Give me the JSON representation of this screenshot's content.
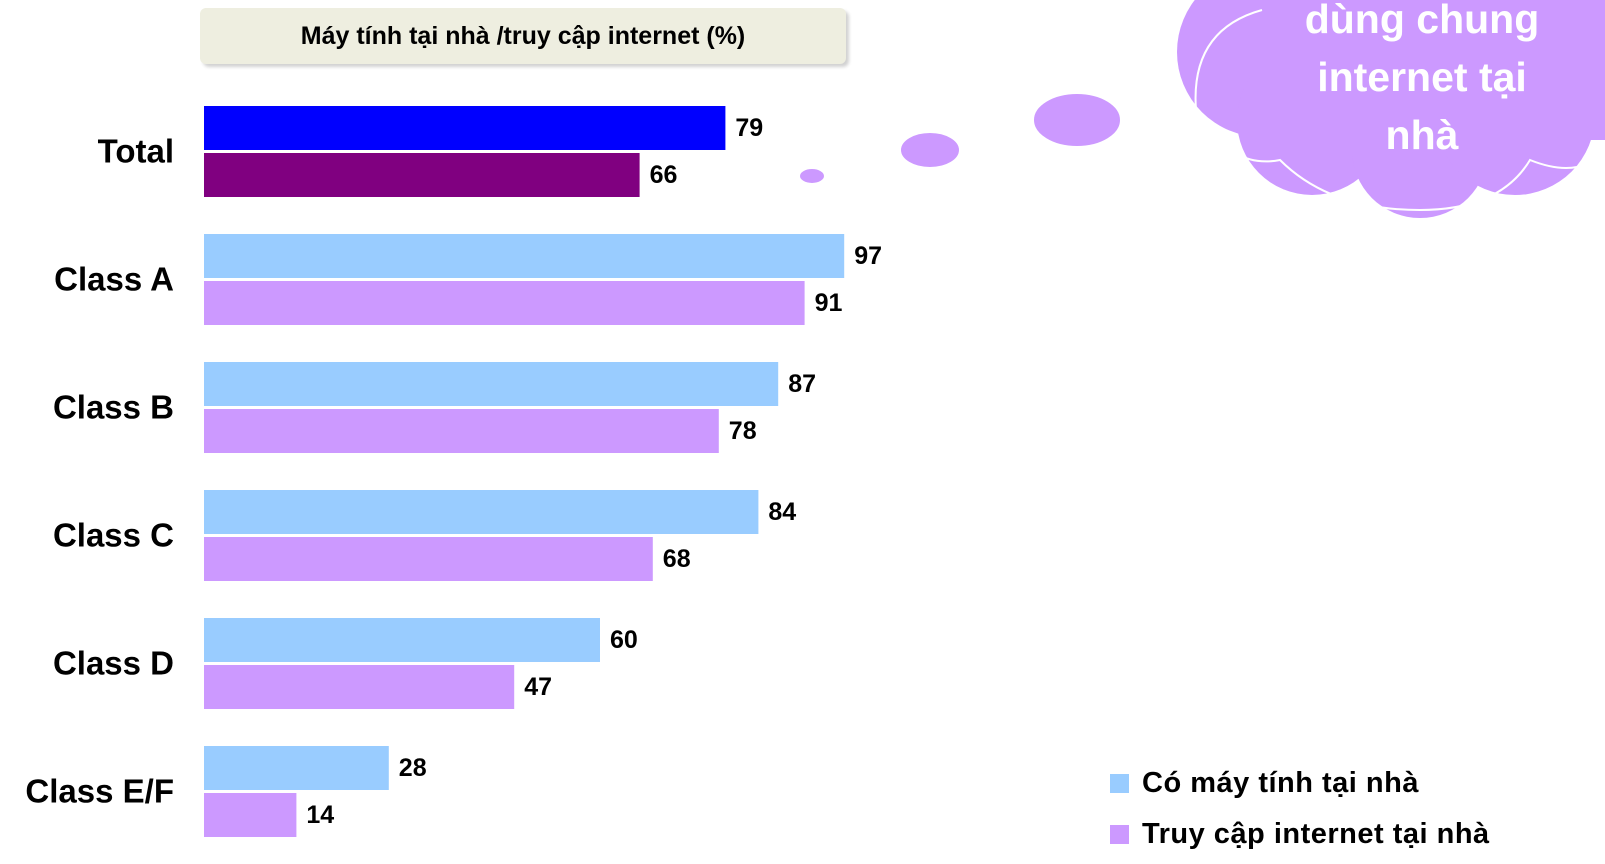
{
  "chart_data": {
    "type": "bar",
    "orientation": "horizontal",
    "title": "Máy tính tại nhà /truy cập internet (%)",
    "categories": [
      "Total",
      "Class A",
      "Class B",
      "Class C",
      "Class D",
      "Class E/F"
    ],
    "series": [
      {
        "name": "Có máy tính tại nhà",
        "values": [
          79,
          97,
          87,
          84,
          60,
          28
        ],
        "color": "#99ccff",
        "highlight_color": "#0000ff"
      },
      {
        "name": "Truy cập internet tại nhà",
        "values": [
          66,
          91,
          78,
          68,
          47,
          14
        ],
        "color": "#cc99ff",
        "highlight_color": "#800080"
      }
    ],
    "xlim": [
      0,
      100
    ],
    "grid": false,
    "legend_position": "bottom-right"
  },
  "callout": {
    "lines": [
      "dùng chung",
      "internet tại",
      "nhà"
    ],
    "color": "#cc99ff"
  }
}
